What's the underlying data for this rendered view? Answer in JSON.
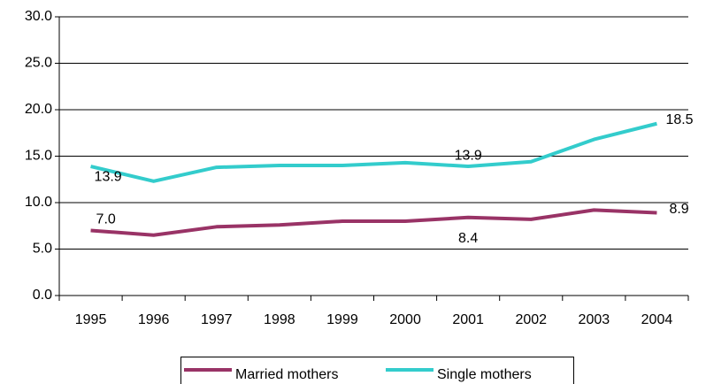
{
  "chart_data": {
    "type": "line",
    "categories": [
      "1995",
      "1996",
      "1997",
      "1998",
      "1999",
      "2000",
      "2001",
      "2002",
      "2003",
      "2004"
    ],
    "series": [
      {
        "name": "Married mothers",
        "color": "#993366",
        "values": [
          7.0,
          6.5,
          7.4,
          7.6,
          8.0,
          8.0,
          8.4,
          8.2,
          9.2,
          8.9
        ],
        "value_labels": [
          "7.0",
          null,
          null,
          null,
          null,
          null,
          "8.4",
          null,
          null,
          "8.9"
        ]
      },
      {
        "name": "Single mothers",
        "color": "#33CCCC",
        "values": [
          13.9,
          12.3,
          13.8,
          14.0,
          14.0,
          14.3,
          13.9,
          14.4,
          16.8,
          18.5
        ],
        "value_labels": [
          "13.9",
          null,
          null,
          null,
          null,
          null,
          "13.9",
          null,
          null,
          "18.5"
        ]
      }
    ],
    "ylim": [
      0,
      30
    ],
    "yticks": [
      {
        "value": 0,
        "label": "0.0"
      },
      {
        "value": 5,
        "label": "5.0"
      },
      {
        "value": 10,
        "label": "10.0"
      },
      {
        "value": 15,
        "label": "15.0"
      },
      {
        "value": 20,
        "label": "20.0"
      },
      {
        "value": 25,
        "label": "25.0"
      },
      {
        "value": 30,
        "label": "30.0"
      }
    ],
    "grid": true,
    "legend": "bottom"
  }
}
